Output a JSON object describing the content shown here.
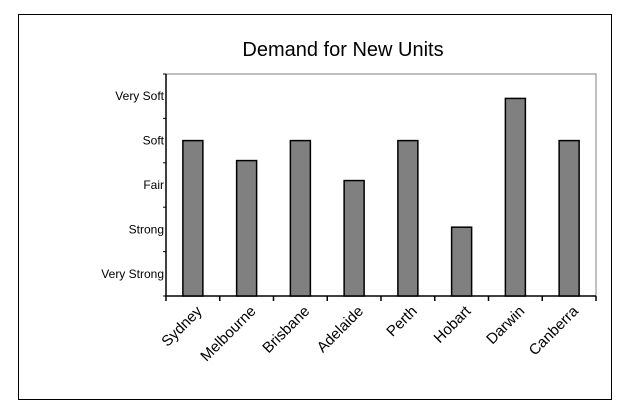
{
  "chart_data": {
    "type": "bar",
    "title": "Demand for New Units",
    "categories": [
      "Sydney",
      "Melbourne",
      "Brisbane",
      "Adelaide",
      "Perth",
      "Hobart",
      "Darwin",
      "Canberra"
    ],
    "y_tick_labels": [
      "Very Strong",
      "Strong",
      "Fair",
      "Soft",
      "Very Soft"
    ],
    "values": [
      4.0,
      3.55,
      4.0,
      3.1,
      4.0,
      2.05,
      4.95,
      4.0
    ],
    "ylim": [
      0.5,
      5.5
    ],
    "grid": false,
    "legend": "none",
    "colors": {
      "bar_fill": "#808080",
      "bar_stroke": "#000000",
      "axis": "#000000",
      "plot_border": "#808080"
    }
  }
}
